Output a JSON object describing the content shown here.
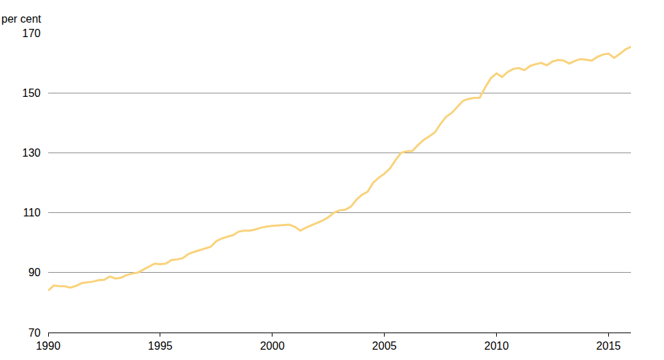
{
  "chart_data": {
    "type": "line",
    "y_label": "per cent",
    "color": "#F9D27A",
    "grid": true,
    "x": [
      1990,
      1990.25,
      1990.5,
      1990.75,
      1991,
      1991.25,
      1991.5,
      1991.75,
      1992,
      1992.25,
      1992.5,
      1992.75,
      1993,
      1993.25,
      1993.5,
      1993.75,
      1994,
      1994.25,
      1994.5,
      1994.75,
      1995,
      1995.25,
      1995.5,
      1995.75,
      1996,
      1996.25,
      1996.5,
      1996.75,
      1997,
      1997.25,
      1997.5,
      1997.75,
      1998,
      1998.25,
      1998.5,
      1998.75,
      1999,
      1999.25,
      1999.5,
      1999.75,
      2000,
      2000.25,
      2000.5,
      2000.75,
      2001,
      2001.25,
      2001.5,
      2001.75,
      2002,
      2002.25,
      2002.5,
      2002.75,
      2003,
      2003.25,
      2003.5,
      2003.75,
      2004,
      2004.25,
      2004.5,
      2004.75,
      2005,
      2005.25,
      2005.5,
      2005.75,
      2006,
      2006.25,
      2006.5,
      2006.75,
      2007,
      2007.25,
      2007.5,
      2007.75,
      2008,
      2008.25,
      2008.5,
      2008.75,
      2009,
      2009.25,
      2009.5,
      2009.75,
      2010,
      2010.25,
      2010.5,
      2010.75,
      2011,
      2011.25,
      2011.5,
      2011.75,
      2012,
      2012.25,
      2012.5,
      2012.75,
      2013,
      2013.25,
      2013.5,
      2013.75,
      2014,
      2014.25,
      2014.5,
      2014.75,
      2015,
      2015.25,
      2015.5,
      2015.75,
      2016
    ],
    "values": [
      84,
      85.7,
      85.5,
      85.4,
      85,
      85.6,
      86.5,
      86.8,
      87,
      87.5,
      87.6,
      88.7,
      88,
      88.3,
      89.2,
      89.7,
      90,
      91,
      92,
      93,
      92.8,
      93,
      94.2,
      94.4,
      94.8,
      96.2,
      96.9,
      97.5,
      98,
      98.6,
      100.5,
      101.4,
      102,
      102.5,
      103.7,
      104,
      104,
      104.4,
      105,
      105.4,
      105.6,
      105.7,
      105.8,
      106,
      105.3,
      104,
      105,
      105.8,
      106.6,
      107.4,
      108.5,
      110,
      110.8,
      111,
      112,
      114.3,
      116,
      117,
      120,
      121.7,
      123,
      124.8,
      127.6,
      130,
      130.5,
      130.6,
      132.6,
      134.3,
      135.5,
      136.8,
      139.6,
      142,
      143.3,
      145.3,
      147.3,
      148,
      148.3,
      148.4,
      151.9,
      154.9,
      156.5,
      155.3,
      157,
      158,
      158.3,
      157.6,
      159,
      159.6,
      160,
      159.2,
      160.5,
      161,
      160.8,
      159.8,
      160.7,
      161.3,
      161,
      160.8,
      162,
      162.8,
      163.1,
      161.7,
      163,
      164.5,
      165.4
    ],
    "xlim": [
      1990,
      2016
    ],
    "xticks": [
      1990,
      1995,
      2000,
      2005,
      2010,
      2015
    ],
    "ylim": [
      70,
      170
    ],
    "yticks": [
      70,
      90,
      110,
      130,
      150,
      170
    ]
  }
}
